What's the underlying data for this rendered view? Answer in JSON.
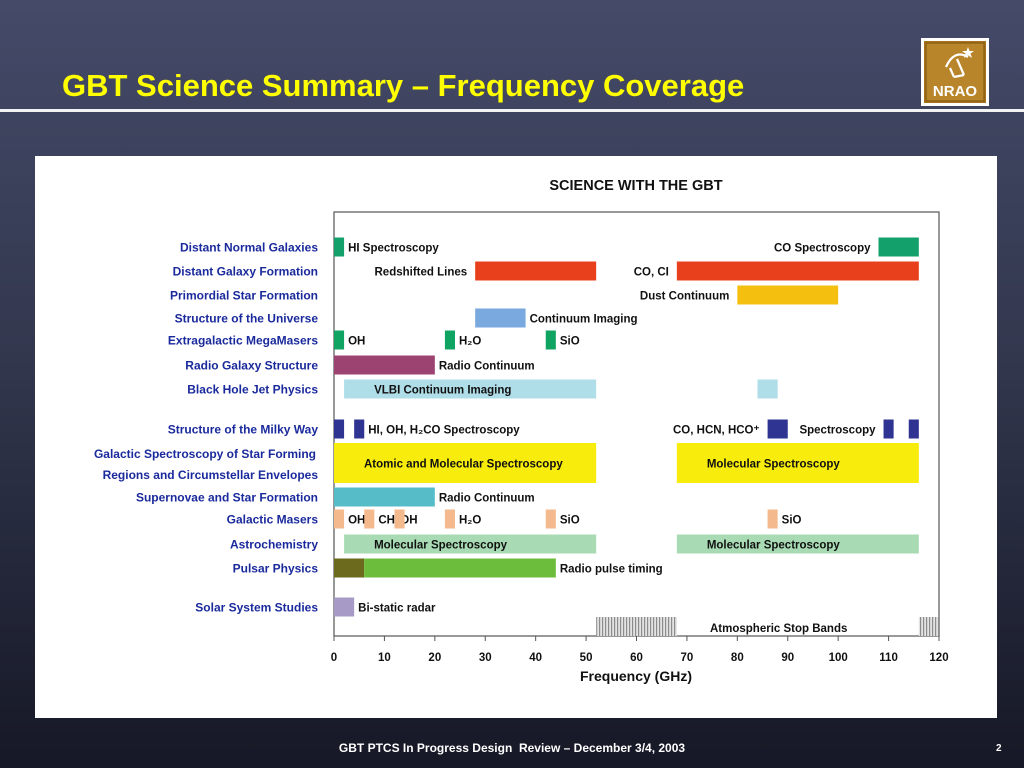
{
  "slide": {
    "title": "GBT Science Summary – Frequency Coverage",
    "footer": "GBT PTCS In Progress Design  Review – December 3/4, 2003",
    "page_number": "2",
    "logo_text": "NRAO"
  },
  "colors": {
    "background_top": "#444a68",
    "title": "#ffff00",
    "row_label": "#1a2a9c",
    "teal": "#13a06b",
    "red_orange": "#e8401d",
    "gold": "#f5bf10",
    "light_blue": "#7aa9df",
    "green": "#10a463",
    "maroon": "#9c4372",
    "pale_cyan": "#afdde8",
    "navy": "#2f3493",
    "yellow": "#f7ec0b",
    "cyan": "#56bcc8",
    "peach": "#f4b98c",
    "mint": "#a8dbb4",
    "olive": "#6b6a1d",
    "lime": "#6cbd3c",
    "lavender": "#a79ac7",
    "stop_band": "#a9a9a9"
  },
  "chart_data": {
    "type": "range-bar",
    "title": "SCIENCE WITH THE GBT",
    "xlabel": "Frequency (GHz)",
    "xlim": [
      0,
      120
    ],
    "xticks": [
      0,
      10,
      20,
      30,
      40,
      50,
      60,
      70,
      80,
      90,
      100,
      110,
      120
    ],
    "rows": [
      {
        "label": "Distant Normal Galaxies",
        "bars": [
          {
            "x": [
              0,
              2
            ],
            "color": "#13a06b",
            "text": "HI Spectroscopy"
          },
          {
            "x": [
              108,
              116
            ],
            "color": "#13a06b",
            "text": "CO Spectroscopy",
            "text_side": "left"
          }
        ]
      },
      {
        "label": "Distant Galaxy Formation",
        "bars": [
          {
            "x": [
              28,
              52
            ],
            "color": "#e8401d",
            "text": "Redshifted Lines",
            "text_side": "left"
          },
          {
            "x": [
              68,
              116
            ],
            "color": "#e8401d",
            "text": "CO, CI",
            "text_side": "left"
          }
        ]
      },
      {
        "label": "Primordial Star Formation",
        "bars": [
          {
            "x": [
              80,
              100
            ],
            "color": "#f5bf10",
            "text": "Dust Continuum",
            "text_side": "left"
          }
        ]
      },
      {
        "label": "Structure of the Universe",
        "bars": [
          {
            "x": [
              28,
              38
            ],
            "color": "#7aa9df",
            "text": "Continuum Imaging"
          }
        ]
      },
      {
        "label": "Extragalactic MegaMasers",
        "bars": [
          {
            "x": [
              0,
              2
            ],
            "color": "#10a463",
            "text": "OH"
          },
          {
            "x": [
              22,
              24
            ],
            "color": "#10a463",
            "text": "H₂O"
          },
          {
            "x": [
              42,
              44
            ],
            "color": "#10a463",
            "text": "SiO"
          }
        ]
      },
      {
        "label": "Radio Galaxy Structure",
        "bars": [
          {
            "x": [
              0,
              20
            ],
            "color": "#9c4372",
            "text": "Radio Continuum"
          }
        ]
      },
      {
        "label": "Black Hole Jet Physics",
        "bars": [
          {
            "x": [
              2,
              52
            ],
            "color": "#afdde8",
            "text": "VLBI Continuum Imaging",
            "text_side": "inside"
          },
          {
            "x": [
              84,
              88
            ],
            "color": "#afdde8",
            "text": ""
          }
        ]
      },
      {
        "label": "Structure of the Milky Way",
        "bars": [
          {
            "x": [
              0,
              2
            ],
            "color": "#2f3493",
            "text": ""
          },
          {
            "x": [
              4,
              6
            ],
            "color": "#2f3493",
            "text": "HI, OH, H₂CO Spectroscopy"
          },
          {
            "x": [
              86,
              90
            ],
            "color": "#2f3493",
            "text": "CO, HCN, HCO⁺",
            "text_side": "left"
          },
          {
            "x": [
              109,
              111
            ],
            "color": "#2f3493",
            "text": "Spectroscopy",
            "text_side": "left"
          },
          {
            "x": [
              114,
              116
            ],
            "color": "#2f3493",
            "text": ""
          }
        ]
      },
      {
        "label": "Galactic Spectroscopy of Star Forming",
        "label2": "Regions and Circumstellar Envelopes",
        "double": true,
        "bars": [
          {
            "x": [
              0,
              52
            ],
            "color": "#f7ec0b",
            "text": "Atomic and Molecular Spectroscopy",
            "text_side": "inside"
          },
          {
            "x": [
              68,
              116
            ],
            "color": "#f7ec0b",
            "text": "Molecular Spectroscopy",
            "text_side": "inside"
          }
        ]
      },
      {
        "label": "Supernovae and Star Formation",
        "bars": [
          {
            "x": [
              0,
              20
            ],
            "color": "#56bcc8",
            "text": "Radio Continuum"
          }
        ]
      },
      {
        "label": "Galactic Masers",
        "bars": [
          {
            "x": [
              0,
              2
            ],
            "color": "#f4b98c",
            "text": "OH"
          },
          {
            "x": [
              6,
              8
            ],
            "color": "#f4b98c",
            "text": "CH₃OH"
          },
          {
            "x": [
              12,
              14
            ],
            "color": "#f4b98c",
            "text": ""
          },
          {
            "x": [
              22,
              24
            ],
            "color": "#f4b98c",
            "text": "H₂O"
          },
          {
            "x": [
              42,
              44
            ],
            "color": "#f4b98c",
            "text": "SiO"
          },
          {
            "x": [
              86,
              88
            ],
            "color": "#f4b98c",
            "text": "SiO"
          }
        ]
      },
      {
        "label": "Astrochemistry",
        "bars": [
          {
            "x": [
              2,
              52
            ],
            "color": "#a8dbb4",
            "text": "Molecular Spectroscopy",
            "text_side": "inside"
          },
          {
            "x": [
              68,
              116
            ],
            "color": "#a8dbb4",
            "text": "Molecular Spectroscopy",
            "text_side": "inside"
          }
        ]
      },
      {
        "label": "Pulsar Physics",
        "bars": [
          {
            "x": [
              0,
              6
            ],
            "color": "#6b6a1d",
            "text": ""
          },
          {
            "x": [
              6,
              44
            ],
            "color": "#6cbd3c",
            "text": "Radio pulse timing"
          }
        ]
      },
      {
        "label": "Solar System Studies",
        "bars": [
          {
            "x": [
              0,
              4
            ],
            "color": "#a79ac7",
            "text": "Bi-static radar"
          }
        ]
      }
    ],
    "stop_bands": {
      "label": "Atmospheric Stop Bands",
      "ranges": [
        [
          52,
          68
        ],
        [
          116,
          120
        ]
      ]
    }
  }
}
